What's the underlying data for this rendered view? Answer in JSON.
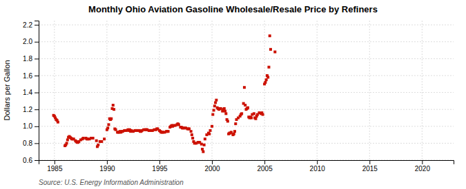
{
  "chart_data": {
    "type": "scatter",
    "title": "Monthly Ohio Aviation Gasoline Wholesale/Resale Price by Refiners",
    "ylabel": "Dollars per Gallon",
    "source": "Source: U.S. Energy Information Administration",
    "xlim": [
      1983.5,
      2023
    ],
    "ylim": [
      0.6,
      2.25
    ],
    "xticks": [
      1985,
      1990,
      1995,
      2000,
      2005,
      2010,
      2015,
      2020
    ],
    "yticks": [
      0.6,
      0.8,
      {
        "value": 1.0,
        "label": "1.0"
      },
      1.2,
      1.4,
      1.6,
      1.8,
      {
        "value": 2.0,
        "label": "2.0"
      },
      2.2
    ],
    "grid": true,
    "color": "#cc1100",
    "marker": "square",
    "x": [
      1984.917,
      1985.0,
      1985.083,
      1985.167,
      1985.25,
      1985.333,
      1986.0,
      1986.083,
      1986.167,
      1986.25,
      1986.333,
      1986.417,
      1986.5,
      1986.583,
      1986.667,
      1986.75,
      1986.833,
      1987.0,
      1987.083,
      1987.167,
      1987.25,
      1987.333,
      1987.5,
      1987.667,
      1987.75,
      1988.0,
      1988.083,
      1988.167,
      1988.333,
      1988.5,
      1988.667,
      1989.0,
      1989.083,
      1989.167,
      1989.333,
      1989.5,
      1989.75,
      1990.0,
      1990.083,
      1990.167,
      1990.25,
      1990.333,
      1990.417,
      1990.5,
      1990.583,
      1990.667,
      1990.75,
      1990.833,
      1991.0,
      1991.083,
      1991.167,
      1991.25,
      1991.333,
      1991.417,
      1991.5,
      1991.667,
      1991.75,
      1991.833,
      1992.0,
      1992.083,
      1992.167,
      1992.25,
      1992.333,
      1992.5,
      1992.667,
      1992.75,
      1992.833,
      1993.0,
      1993.083,
      1993.167,
      1993.25,
      1993.333,
      1993.5,
      1993.667,
      1993.75,
      1993.833,
      1994.0,
      1994.083,
      1994.167,
      1994.25,
      1994.333,
      1994.5,
      1994.667,
      1994.75,
      1994.833,
      1995.0,
      1995.083,
      1995.167,
      1995.25,
      1995.333,
      1995.5,
      1995.667,
      1995.75,
      1995.833,
      1996.0,
      1996.083,
      1996.167,
      1996.25,
      1996.333,
      1996.5,
      1996.667,
      1996.75,
      1996.833,
      1997.0,
      1997.083,
      1997.167,
      1997.25,
      1997.333,
      1997.5,
      1997.667,
      1997.75,
      1997.833,
      1998.0,
      1998.083,
      1998.167,
      1998.25,
      1998.333,
      1998.5,
      1998.667,
      1998.75,
      1998.833,
      1999.0,
      1999.083,
      1999.167,
      1999.25,
      1999.333,
      1999.5,
      1999.667,
      1999.75,
      1999.833,
      2000.0,
      2000.083,
      2000.167,
      2000.25,
      2000.333,
      2000.417,
      2000.5,
      2000.583,
      2000.667,
      2000.75,
      2000.833,
      2001.0,
      2001.083,
      2001.167,
      2001.25,
      2001.333,
      2001.417,
      2001.5,
      2001.583,
      2001.667,
      2001.75,
      2001.833,
      2002.0,
      2002.083,
      2002.167,
      2002.25,
      2002.333,
      2002.5,
      2002.667,
      2002.75,
      2002.833,
      2003.0,
      2003.083,
      2003.167,
      2003.25,
      2003.333,
      2003.417,
      2003.5,
      2003.583,
      2003.667,
      2003.75,
      2003.833,
      2004.0,
      2004.083,
      2004.167,
      2004.25,
      2004.333,
      2004.5,
      2004.667,
      2004.75,
      2004.833,
      2005.0,
      2005.083,
      2005.167,
      2005.25,
      2005.333,
      2005.417,
      2005.5,
      2005.583,
      2006.0
    ],
    "values": [
      1.13,
      1.12,
      1.1,
      1.08,
      1.07,
      1.05,
      0.77,
      0.78,
      0.8,
      0.84,
      0.87,
      0.88,
      0.87,
      0.86,
      0.85,
      0.85,
      0.85,
      0.83,
      0.82,
      0.81,
      0.81,
      0.82,
      0.84,
      0.85,
      0.86,
      0.86,
      0.85,
      0.85,
      0.85,
      0.86,
      0.86,
      0.83,
      0.76,
      0.78,
      0.82,
      0.82,
      0.85,
      0.96,
      0.98,
      1.02,
      1.09,
      1.08,
      1.09,
      1.21,
      1.25,
      1.2,
      0.97,
      0.96,
      0.93,
      0.93,
      0.93,
      0.94,
      0.93,
      0.94,
      0.94,
      0.95,
      0.95,
      0.95,
      0.96,
      0.95,
      0.96,
      0.94,
      0.95,
      0.94,
      0.95,
      0.95,
      0.95,
      0.95,
      0.95,
      0.94,
      0.94,
      0.95,
      0.96,
      0.96,
      0.96,
      0.96,
      0.95,
      0.95,
      0.95,
      0.95,
      0.95,
      0.96,
      0.96,
      0.97,
      0.97,
      0.95,
      0.94,
      0.93,
      0.93,
      0.93,
      0.93,
      0.94,
      0.94,
      0.94,
      0.99,
      1.0,
      1.01,
      1.0,
      1.01,
      1.01,
      1.02,
      1.03,
      1.02,
      0.99,
      0.99,
      0.98,
      0.98,
      0.98,
      0.98,
      0.97,
      0.97,
      0.97,
      0.94,
      0.9,
      0.86,
      0.82,
      0.8,
      0.8,
      0.81,
      0.81,
      0.81,
      0.79,
      0.73,
      0.7,
      0.78,
      0.85,
      0.9,
      0.92,
      0.91,
      0.95,
      1.0,
      1.14,
      1.19,
      1.24,
      1.28,
      1.31,
      1.22,
      1.21,
      1.2,
      1.21,
      1.21,
      1.18,
      1.2,
      1.21,
      1.18,
      1.15,
      1.08,
      1.06,
      0.91,
      0.92,
      0.92,
      0.93,
      0.9,
      0.91,
      0.94,
      1.03,
      1.08,
      1.1,
      1.12,
      1.14,
      1.15,
      1.27,
      1.46,
      1.25,
      1.2,
      1.21,
      1.22,
      1.11,
      1.1,
      1.11,
      1.1,
      1.14,
      1.15,
      1.1,
      1.09,
      1.12,
      1.14,
      1.16,
      1.15,
      1.16,
      1.14,
      1.5,
      1.52,
      1.55,
      1.6,
      1.58,
      1.7,
      2.07,
      1.91,
      1.88
    ]
  }
}
